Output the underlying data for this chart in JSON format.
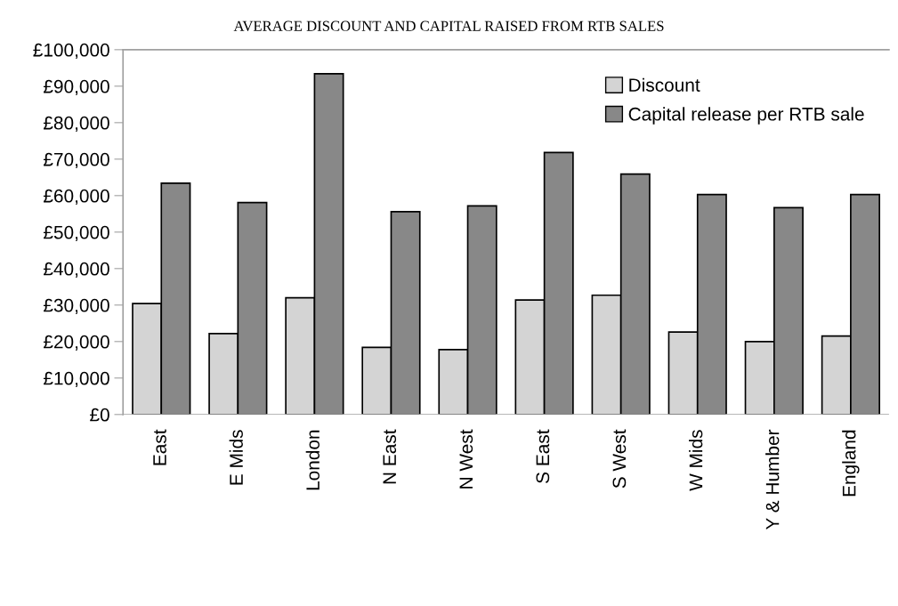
{
  "chart_data": {
    "type": "bar",
    "title": "AVERAGE DISCOUNT AND CAPITAL RAISED FROM RTB SALES",
    "categories": [
      "East",
      "E Mids",
      "London",
      "N East",
      "N West",
      "S East",
      "S West",
      "W Mids",
      "Y & Humber",
      "England"
    ],
    "series": [
      {
        "name": "Discount",
        "color": "#d4d4d4",
        "values": [
          30400,
          22200,
          32000,
          18400,
          17800,
          31400,
          32700,
          22600,
          20000,
          21500
        ]
      },
      {
        "name": "Capital release per RTB sale",
        "color": "#888888",
        "values": [
          63400,
          58100,
          93400,
          55600,
          57200,
          71800,
          65900,
          60300,
          56700,
          60300
        ]
      }
    ],
    "ylim": [
      0,
      100000
    ],
    "yticks": [
      {
        "value": 0,
        "label": "£0"
      },
      {
        "value": 10000,
        "label": "£10,000"
      },
      {
        "value": 20000,
        "label": "£20,000"
      },
      {
        "value": 30000,
        "label": "£30,000"
      },
      {
        "value": 40000,
        "label": "£40,000"
      },
      {
        "value": 50000,
        "label": "£50,000"
      },
      {
        "value": 60000,
        "label": "£60,000"
      },
      {
        "value": 70000,
        "label": "£70,000"
      },
      {
        "value": 80000,
        "label": "£80,000"
      },
      {
        "value": 90000,
        "label": "£90,000"
      },
      {
        "value": 100000,
        "label": "£100,000"
      }
    ],
    "grid": false,
    "legend": "top right"
  }
}
